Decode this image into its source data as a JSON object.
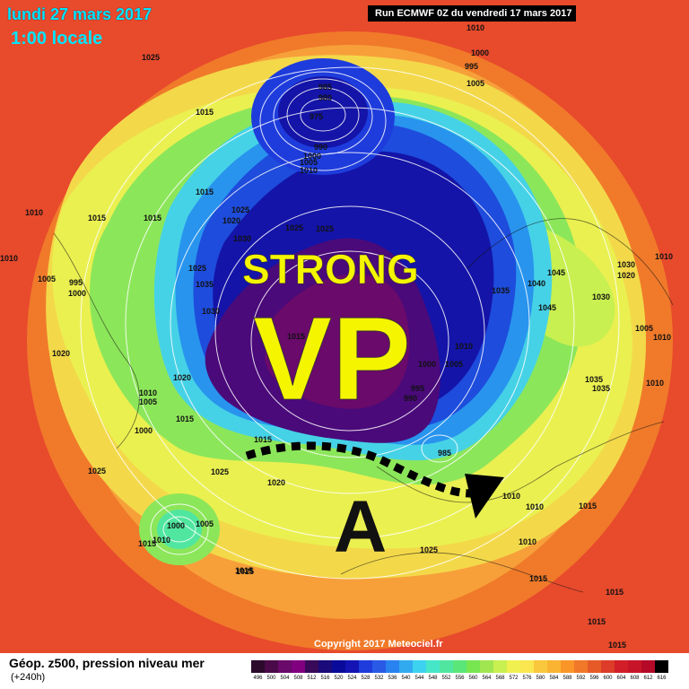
{
  "header": {
    "date": "lundi 27 mars 2017",
    "time": "1:00 locale",
    "run": "Run ECMWF 0Z du vendredi 17 mars 2017"
  },
  "overlay": {
    "strong": "STRONG",
    "vp": "VP",
    "a": "A"
  },
  "pressure_labels": [
    "1025",
    "1015",
    "1010",
    "1010",
    "995",
    "1000",
    "1005",
    "985",
    "980",
    "975",
    "990",
    "1000",
    "1005",
    "1010",
    "1015",
    "1020",
    "1025",
    "1030",
    "1015",
    "1010",
    "1015",
    "1025",
    "1025",
    "1025",
    "1030",
    "1035",
    "1030",
    "1045",
    "1040",
    "1045",
    "1035",
    "1030",
    "1020",
    "1010",
    "1005",
    "995",
    "1000",
    "1020",
    "1010",
    "1005",
    "1015",
    "1000",
    "1020",
    "1015",
    "1015",
    "1020",
    "1025",
    "1010",
    "1000",
    "1005",
    "1015",
    "1010",
    "1025",
    "1015",
    "1020",
    "1025",
    "995",
    "990",
    "985",
    "1000",
    "1005",
    "1010",
    "1015",
    "1035",
    "1035",
    "1010",
    "1010",
    "1015",
    "1015",
    "1015",
    "1015",
    "1015",
    "1010",
    "1010",
    "1005",
    "1010",
    "1020",
    "1025",
    "1025"
  ],
  "footer": {
    "title": "Géop. z500, pression niveau mer",
    "subtitle": "(+240h)",
    "copyright": "Copyright 2017 Meteociel.fr"
  },
  "legend": {
    "values": [
      "496",
      "500",
      "504",
      "508",
      "512",
      "516",
      "520",
      "524",
      "528",
      "532",
      "536",
      "540",
      "544",
      "548",
      "552",
      "556",
      "560",
      "564",
      "568",
      "572",
      "576",
      "580",
      "584",
      "588",
      "592",
      "596",
      "600",
      "604",
      "608",
      "612",
      "616"
    ],
    "colors": [
      "#2b0a2b",
      "#4a0a4a",
      "#6a0a6a",
      "#800080",
      "#3a0a5a",
      "#1a0a7a",
      "#0a0a9a",
      "#1414b4",
      "#1e3cdc",
      "#285ae6",
      "#2882f0",
      "#32aaf0",
      "#3cd2f0",
      "#46e6c8",
      "#50e6a0",
      "#5ae678",
      "#78e650",
      "#a0e650",
      "#c8f050",
      "#f0f050",
      "#fae650",
      "#fac83c",
      "#fab432",
      "#fa9628",
      "#f07828",
      "#e65a28",
      "#dc3c28",
      "#d21e28",
      "#c81428",
      "#b40a28",
      "#000000"
    ]
  }
}
